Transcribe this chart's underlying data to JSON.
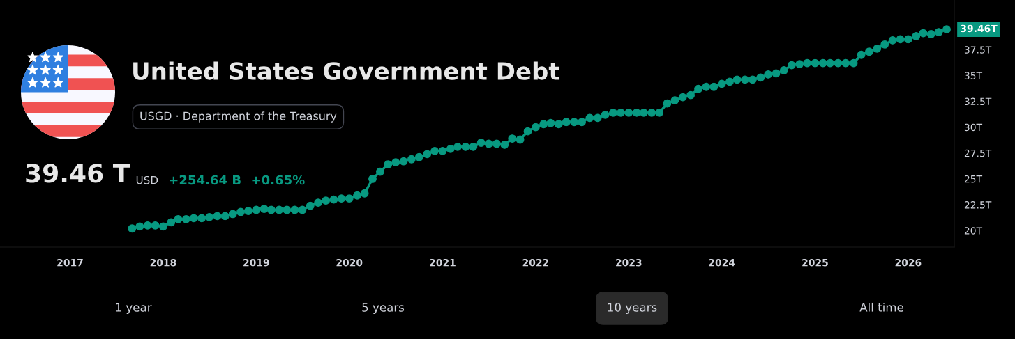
{
  "chart_data": {
    "type": "line",
    "title": "United States Government Debt",
    "subtitle": "USGD · Department of the Treasury",
    "annotations": [
      "39.46 T",
      "USD",
      "+254.64 B",
      "+0.65%",
      "1 year",
      "5 years",
      "10 years",
      "All time"
    ],
    "x": [
      "2017-09",
      "2017-10",
      "2017-11",
      "2017-12",
      "2018-01",
      "2018-02",
      "2018-03",
      "2018-04",
      "2018-05",
      "2018-06",
      "2018-07",
      "2018-08",
      "2018-09",
      "2018-10",
      "2018-11",
      "2018-12",
      "2019-01",
      "2019-02",
      "2019-03",
      "2019-04",
      "2019-05",
      "2019-06",
      "2019-07",
      "2019-08",
      "2019-09",
      "2019-10",
      "2019-11",
      "2019-12",
      "2020-01",
      "2020-02",
      "2020-03",
      "2020-04",
      "2020-05",
      "2020-06",
      "2020-07",
      "2020-08",
      "2020-09",
      "2020-10",
      "2020-11",
      "2020-12",
      "2021-01",
      "2021-02",
      "2021-03",
      "2021-04",
      "2021-05",
      "2021-06",
      "2021-07",
      "2021-08",
      "2021-09",
      "2021-10",
      "2021-11",
      "2021-12",
      "2022-01",
      "2022-02",
      "2022-03",
      "2022-04",
      "2022-05",
      "2022-06",
      "2022-07",
      "2022-08",
      "2022-09",
      "2022-10",
      "2022-11",
      "2022-12",
      "2023-01",
      "2023-02",
      "2023-03",
      "2023-04",
      "2023-05",
      "2023-06",
      "2023-07",
      "2023-08",
      "2023-09",
      "2023-10",
      "2023-11",
      "2023-12",
      "2024-01",
      "2024-02",
      "2024-03",
      "2024-04",
      "2024-05",
      "2024-06",
      "2024-07",
      "2024-08",
      "2024-09",
      "2024-10",
      "2024-11",
      "2024-12",
      "2025-01",
      "2025-02",
      "2025-03",
      "2025-04",
      "2025-05",
      "2025-06",
      "2025-07",
      "2025-08",
      "2025-09",
      "2025-10",
      "2025-11",
      "2025-12",
      "2026-01",
      "2026-02",
      "2026-03",
      "2026-04",
      "2026-05",
      "2026-06"
    ],
    "series": [
      {
        "color": "#089981",
        "values": [
          20.2,
          20.4,
          20.5,
          20.5,
          20.4,
          20.8,
          21.1,
          21.1,
          21.2,
          21.2,
          21.3,
          21.4,
          21.4,
          21.6,
          21.8,
          21.9,
          22.0,
          22.1,
          22.0,
          22.0,
          22.0,
          22.0,
          22.0,
          22.4,
          22.7,
          22.9,
          23.0,
          23.1,
          23.1,
          23.4,
          23.6,
          25.0,
          25.7,
          26.4,
          26.6,
          26.7,
          26.9,
          27.1,
          27.4,
          27.7,
          27.7,
          27.9,
          28.1,
          28.1,
          28.1,
          28.5,
          28.4,
          28.4,
          28.3,
          28.9,
          28.8,
          29.6,
          30.0,
          30.3,
          30.4,
          30.3,
          30.5,
          30.5,
          30.5,
          30.9,
          30.9,
          31.2,
          31.4,
          31.4,
          31.4,
          31.4,
          31.4,
          31.4,
          31.4,
          32.3,
          32.6,
          32.9,
          33.1,
          33.7,
          33.9,
          33.9,
          34.2,
          34.4,
          34.6,
          34.6,
          34.6,
          34.8,
          35.1,
          35.2,
          35.5,
          36.0,
          36.1,
          36.2,
          36.2,
          36.2,
          36.2,
          36.2,
          36.2,
          36.2,
          37.0,
          37.3,
          37.6,
          38.0,
          38.4,
          38.5,
          38.5,
          38.8,
          39.1,
          39.0,
          39.2,
          39.46
        ],
        "value_labels": [
          null,
          null,
          null,
          null,
          null,
          null,
          null,
          null,
          null,
          null,
          null,
          null,
          null,
          null,
          null,
          null,
          null,
          null,
          null,
          null,
          null,
          null,
          null,
          null,
          null,
          null,
          null,
          null,
          null,
          null,
          null,
          null,
          null,
          null,
          null,
          null,
          null,
          null,
          null,
          null,
          null,
          null,
          null,
          null,
          null,
          null,
          null,
          null,
          null,
          null,
          null,
          null,
          null,
          null,
          null,
          null,
          null,
          null,
          null,
          null,
          null,
          null,
          null,
          null,
          null,
          null,
          null,
          null,
          null,
          null,
          null,
          null,
          null,
          null,
          null,
          null,
          null,
          null,
          null,
          null,
          null,
          null,
          null,
          null,
          null,
          null,
          null,
          null,
          null,
          null,
          null,
          null,
          null,
          null,
          null,
          null,
          null,
          null,
          null,
          null,
          null,
          null,
          null,
          null,
          null,
          "39.46T"
        ]
      }
    ],
    "marker": "circle",
    "line_style": "solid",
    "grid": false,
    "legend": false,
    "xlim": [
      "2016-04",
      "2026-07"
    ],
    "xticks": [
      {
        "value": "2017",
        "label": "2017"
      },
      {
        "value": "2018",
        "label": "2018"
      },
      {
        "value": "2019",
        "label": "2019"
      },
      {
        "value": "2020",
        "label": "2020"
      },
      {
        "value": "2021",
        "label": "2021"
      },
      {
        "value": "2022",
        "label": "2022"
      },
      {
        "value": "2023",
        "label": "2023"
      },
      {
        "value": "2024",
        "label": "2024"
      },
      {
        "value": "2025",
        "label": "2025"
      },
      {
        "value": "2026",
        "label": "2026"
      }
    ],
    "ylim": [
      18.4,
      42.3
    ],
    "yticks": [
      {
        "value": 20,
        "label": "20T"
      },
      {
        "value": 22.5,
        "label": "22.5T"
      },
      {
        "value": 25,
        "label": "25T"
      },
      {
        "value": 27.5,
        "label": "27.5T"
      },
      {
        "value": 30,
        "label": "30T"
      },
      {
        "value": 32.5,
        "label": "32.5T"
      },
      {
        "value": 35,
        "label": "35T"
      },
      {
        "value": 37.5,
        "label": "37.5T"
      }
    ]
  }
}
